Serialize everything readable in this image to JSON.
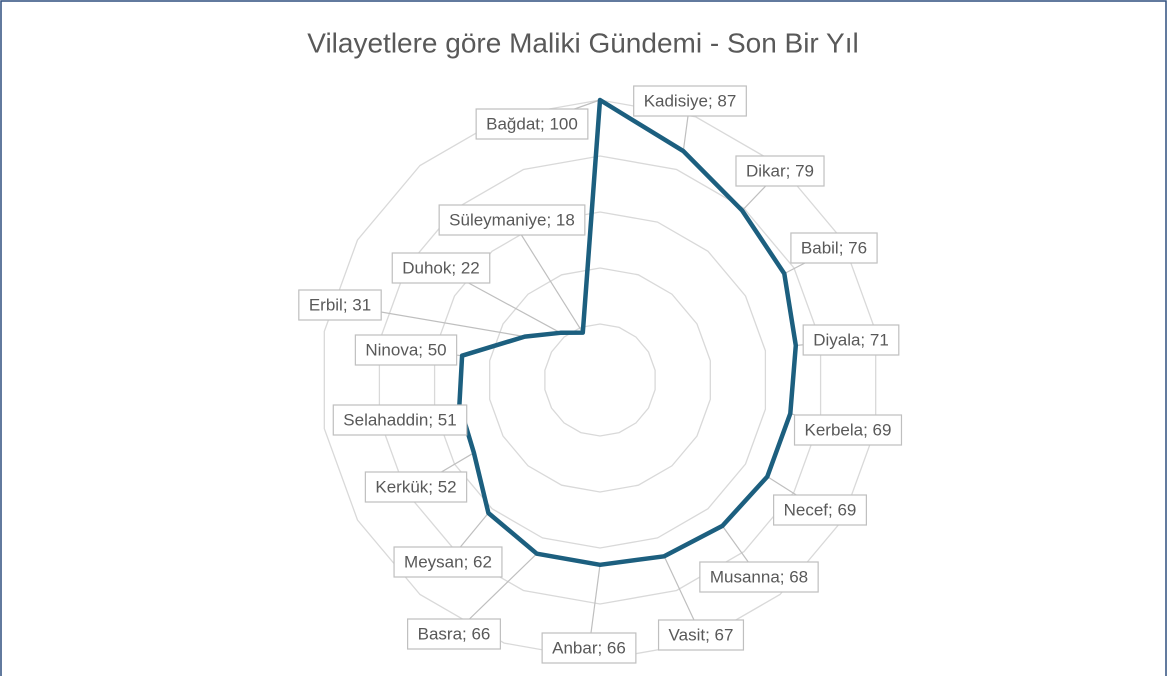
{
  "chart_data": {
    "type": "radar",
    "title": "Vilayetlere göre Maliki Gündemi - Son Bir Yıl",
    "categories": [
      "Bağdat",
      "Kadisiye",
      "Dikar",
      "Babil",
      "Diyala",
      "Kerbela",
      "Necef",
      "Musanna",
      "Vasit",
      "Anbar",
      "Basra",
      "Meysan",
      "Kerkük",
      "Selahaddin",
      "Ninova",
      "Erbil",
      "Duhok",
      "Süleymaniye"
    ],
    "values": [
      100,
      87,
      79,
      76,
      71,
      69,
      69,
      68,
      67,
      66,
      66,
      62,
      52,
      51,
      50,
      31,
      22,
      18
    ],
    "value_labels": [
      "Bağdat; 100",
      "Kadisiye; 87",
      "Dikar; 79",
      "Babil; 76",
      "Diyala; 71",
      "Kerbela; 69",
      "Necef; 69",
      "Musanna; 68",
      "Vasit; 67",
      "Anbar; 66",
      "Basra; 66",
      "Meysan; 62",
      "Kerkük; 52",
      "Selahaddin; 51",
      "Ninova; 50",
      "Erbil; 31",
      "Duhok; 22",
      "Süleymaniye; 18"
    ],
    "color": "#1c5f7f",
    "ylim": [
      0,
      100
    ],
    "yticks": [
      0,
      20,
      40,
      60,
      80,
      100
    ],
    "grid": true
  }
}
